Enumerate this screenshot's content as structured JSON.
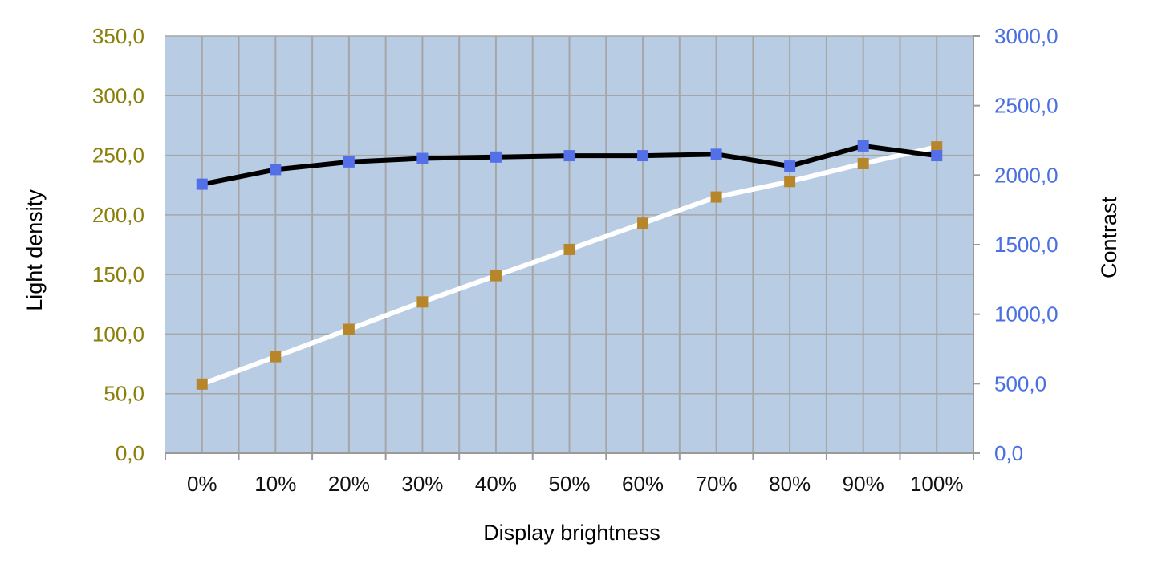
{
  "chart_data": {
    "type": "line",
    "title": "",
    "categories": [
      "0%",
      "10%",
      "20%",
      "30%",
      "40%",
      "50%",
      "60%",
      "70%",
      "80%",
      "90%",
      "100%"
    ],
    "xlabel": "Display brightness",
    "ylabel_left": "Light density",
    "ylabel_right": "Contrast",
    "ylim_left": [
      0,
      350
    ],
    "ylim_right": [
      0,
      3000
    ],
    "yticks_left": [
      "0,0",
      "50,0",
      "100,0",
      "150,0",
      "200,0",
      "250,0",
      "300,0",
      "350,0"
    ],
    "yticks_right": [
      "0,0",
      "500,0",
      "1000,0",
      "1500,0",
      "2000,0",
      "2500,0",
      "3000,0"
    ],
    "grid": true,
    "legend": "none",
    "series": [
      {
        "axis": "left",
        "line_color": "#ffffff",
        "marker_color": "#b8862a",
        "values": [
          58,
          81,
          104,
          127,
          149,
          171,
          193,
          215,
          228,
          243,
          257
        ]
      },
      {
        "axis": "right",
        "line_color": "#000000",
        "marker_color": "#5470e8",
        "values": [
          1935,
          2040,
          2095,
          2120,
          2130,
          2140,
          2140,
          2150,
          2065,
          2210,
          2140
        ]
      }
    ],
    "colors": {
      "plot_background": "#b8cce4",
      "grid": "#a6a6a6",
      "left_tick_text": "#8a7f0a",
      "right_tick_text": "#4a6fe0"
    }
  }
}
